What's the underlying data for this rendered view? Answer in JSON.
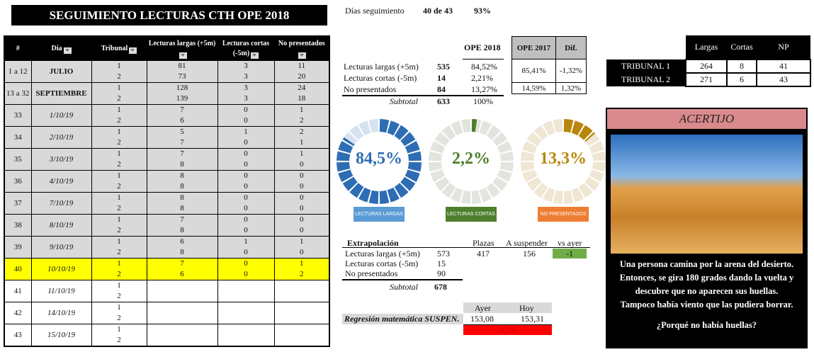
{
  "title": "SEGUIMIENTO LECTURAS CTH OPE 2018",
  "tracking": {
    "label": "Días seguimiento",
    "days": "40 de 43",
    "pct": "93%"
  },
  "table": {
    "headers": [
      "#",
      "Día",
      "Tribunal",
      "Lecturas largas (+5m)",
      "Lecturas cortas (-5m)",
      "No presentados"
    ],
    "rows": [
      {
        "n": "1 a 12",
        "dia": "JULIO",
        "style": "g",
        "bold": true,
        "t": [
          "1",
          "2"
        ],
        "l": [
          "81",
          "73"
        ],
        "c": [
          "3",
          "3"
        ],
        "np": [
          "11",
          "20"
        ]
      },
      {
        "n": "13 a 32",
        "dia": "SEPTIEMBRE",
        "style": "g",
        "bold": true,
        "t": [
          "1",
          "2"
        ],
        "l": [
          "128",
          "139"
        ],
        "c": [
          "3",
          "3"
        ],
        "np": [
          "24",
          "18"
        ]
      },
      {
        "n": "33",
        "dia": "1/10/19",
        "style": "g",
        "t": [
          "1",
          "2"
        ],
        "l": [
          "7",
          "6"
        ],
        "c": [
          "0",
          "0"
        ],
        "np": [
          "1",
          "2"
        ]
      },
      {
        "n": "34",
        "dia": "2/10/19",
        "style": "g",
        "t": [
          "1",
          "2"
        ],
        "l": [
          "5",
          "7"
        ],
        "c": [
          "1",
          "0"
        ],
        "np": [
          "2",
          "1"
        ]
      },
      {
        "n": "35",
        "dia": "3/10/19",
        "style": "g",
        "t": [
          "1",
          "2"
        ],
        "l": [
          "7",
          "8"
        ],
        "c": [
          "0",
          "0"
        ],
        "np": [
          "1",
          "0"
        ]
      },
      {
        "n": "36",
        "dia": "4/10/19",
        "style": "g",
        "t": [
          "1",
          "2"
        ],
        "l": [
          "8",
          "8"
        ],
        "c": [
          "0",
          "0"
        ],
        "np": [
          "0",
          "0"
        ]
      },
      {
        "n": "37",
        "dia": "7/10/19",
        "style": "g",
        "t": [
          "1",
          "2"
        ],
        "l": [
          "8",
          "8"
        ],
        "c": [
          "0",
          "0"
        ],
        "np": [
          "0",
          "0"
        ]
      },
      {
        "n": "38",
        "dia": "8/10/19",
        "style": "g",
        "t": [
          "1",
          "2"
        ],
        "l": [
          "7",
          "8"
        ],
        "c": [
          "0",
          "0"
        ],
        "np": [
          "0",
          "0"
        ]
      },
      {
        "n": "39",
        "dia": "9/10/19",
        "style": "g",
        "t": [
          "1",
          "2"
        ],
        "l": [
          "6",
          "8"
        ],
        "c": [
          "1",
          "0"
        ],
        "np": [
          "1",
          "0"
        ]
      },
      {
        "n": "40",
        "dia": "10/10/19",
        "style": "y",
        "t": [
          "1",
          "2"
        ],
        "l": [
          "7",
          "6"
        ],
        "c": [
          "0",
          "0"
        ],
        "np": [
          "1",
          "2"
        ]
      },
      {
        "n": "41",
        "dia": "11/10/19",
        "style": "w",
        "t": [
          "1",
          "2"
        ],
        "l": [
          "",
          ""
        ],
        "c": [
          "",
          ""
        ],
        "np": [
          "",
          ""
        ]
      },
      {
        "n": "42",
        "dia": "14/10/19",
        "style": "w",
        "t": [
          "1",
          "2"
        ],
        "l": [
          "",
          ""
        ],
        "c": [
          "",
          ""
        ],
        "np": [
          "",
          ""
        ]
      },
      {
        "n": "43",
        "dia": "15/10/19",
        "style": "w",
        "t": [
          "1",
          "2"
        ],
        "l": [
          "",
          ""
        ],
        "c": [
          "",
          ""
        ],
        "np": [
          "",
          ""
        ]
      }
    ]
  },
  "summary": {
    "col_ope2018": "OPE 2018",
    "col_ope2017": "OPE 2017",
    "col_dif": "Dif.",
    "rows": [
      {
        "label": "Lecturas largas  (+5m)",
        "count": "535",
        "pct": "84,52%"
      },
      {
        "label": "Lecturas cortas (-5m)",
        "count": "14",
        "pct": "2,21%"
      },
      {
        "label": "No presentados",
        "count": "84",
        "pct": "13,27%"
      }
    ],
    "subtotal_label": "Subtotal",
    "subtotal": "633",
    "subtotal_pct": "100%",
    "ope2017_a": "85,41%",
    "dif_a": "-1,32%",
    "ope2017_b": "14,59%",
    "dif_b": "1,32%"
  },
  "donuts": [
    {
      "value": 84.5,
      "text": "84,5%",
      "label": "LECTURAS LARGAS",
      "color": "#2e6db4",
      "light": "#d6e2ef",
      "label_bg": "#5b9bd5",
      "text_color": "#2e6db4"
    },
    {
      "value": 2.2,
      "text": "2,2%",
      "label": "LECTURAS CORTAS",
      "color": "#4e7f2c",
      "light": "#e1e5de",
      "label_bg": "#4e7f2c",
      "text_color": "#4e7f2c"
    },
    {
      "value": 13.3,
      "text": "13,3%",
      "label": "NO PRESENTADOS",
      "color": "#b8860b",
      "light": "#efe6d3",
      "label_bg": "#ed7d31",
      "text_color": "#b8860b"
    }
  ],
  "tribunals": {
    "headers": [
      "Largas",
      "Cortas",
      "NP"
    ],
    "rows": [
      {
        "name": "TRIBUNAL 1",
        "vals": [
          "264",
          "8",
          "41"
        ]
      },
      {
        "name": "TRIBUNAL 2",
        "vals": [
          "271",
          "6",
          "43"
        ]
      }
    ]
  },
  "extrapolacion": {
    "title": "Extrapolación",
    "col_plazas": "Plazas",
    "col_susp": "A suspender",
    "col_vs": "vs ayer",
    "rows": [
      {
        "label": "Lecturas largas  (+5m)",
        "val": "573"
      },
      {
        "label": "Lecturas cortas (-5m)",
        "val": "15"
      },
      {
        "label": "No presentados",
        "val": "90"
      }
    ],
    "plazas": "417",
    "suspender": "156",
    "vs_ayer": "-1",
    "subtotal_label": "Subtotal",
    "subtotal": "678"
  },
  "regresion": {
    "label": "Regresión matemática SUSPEN.",
    "ayer_label": "Ayer",
    "hoy_label": "Hoy",
    "ayer": "153,08",
    "hoy": "153,31",
    "diff": "0,23"
  },
  "acertijo": {
    "title": "ACERTIJO",
    "text": [
      "Una persona camina por la arena del desierto.",
      "Entonces, se gira 180 grados dando la vuelta y",
      "descubre que no aparecen sus huellas.",
      "Tampoco había viento que las pudiera borrar."
    ],
    "question": "¿Porqué no había huellas?"
  }
}
